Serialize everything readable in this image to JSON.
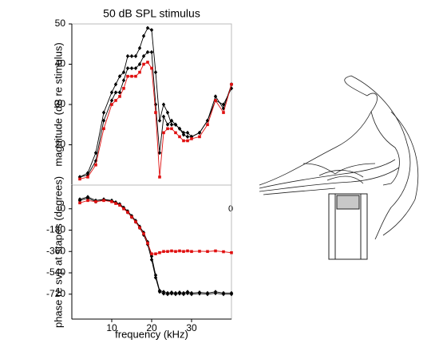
{
  "chart_data": [
    {
      "type": "line",
      "title": "50 dB SPL stimulus",
      "y_label": "magnitude (dB re stimulus)",
      "x": [
        2,
        4,
        6,
        8,
        10,
        11,
        12,
        13,
        14,
        15,
        16,
        17,
        18,
        19,
        20,
        21,
        22,
        23,
        24,
        25,
        26,
        27,
        28,
        29,
        30,
        32,
        34,
        36,
        38,
        40
      ],
      "xlim": [
        0,
        40
      ],
      "ylim": [
        10,
        50
      ],
      "yticks": [
        20,
        30,
        40,
        50
      ],
      "series": [
        {
          "color": "#000000",
          "values": [
            12,
            13,
            18,
            28,
            33,
            35,
            37,
            38,
            42,
            42,
            42,
            44,
            47,
            49,
            48.5,
            38,
            26,
            30,
            28,
            25,
            25,
            24,
            23,
            23,
            22,
            23,
            26,
            31,
            30,
            34
          ]
        },
        {
          "color": "#000000",
          "values": [
            12,
            12.5,
            16,
            26,
            31,
            33,
            33,
            36,
            39,
            39,
            39,
            40,
            42,
            43,
            43,
            30,
            18,
            27,
            25,
            26,
            25,
            24,
            22.5,
            22,
            22,
            23,
            26,
            32,
            29,
            35
          ]
        },
        {
          "color": "#e01010",
          "values": [
            11.5,
            12,
            15,
            24,
            30,
            31,
            32,
            34,
            37,
            37,
            37,
            38,
            40,
            40.5,
            39,
            28,
            12,
            23,
            24,
            24,
            23,
            22,
            21,
            21,
            21.5,
            22,
            25,
            31,
            28,
            35
          ]
        }
      ]
    },
    {
      "type": "line",
      "y_label": "phase re svp at stapes (degrees)",
      "x_label": "frequency (kHz)",
      "annotation": "0",
      "x": [
        2,
        4,
        6,
        8,
        10,
        11,
        12,
        13,
        14,
        15,
        16,
        17,
        18,
        19,
        20,
        21,
        22,
        23,
        24,
        25,
        26,
        27,
        28,
        29,
        30,
        32,
        34,
        36,
        38,
        40
      ],
      "xlim": [
        0,
        40
      ],
      "ylim": [
        -930,
        200
      ],
      "xticks": [
        10,
        20,
        30
      ],
      "yticks": [
        0,
        -180,
        -360,
        -540,
        -720
      ],
      "series": [
        {
          "color": "#000000",
          "values": [
            80,
            100,
            70,
            80,
            70,
            55,
            40,
            10,
            -20,
            -60,
            -100,
            -150,
            -200,
            -280,
            -400,
            -560,
            -690,
            -700,
            -710,
            -705,
            -710,
            -705,
            -710,
            -700,
            -710,
            -705,
            -710,
            -700,
            -710,
            -710
          ]
        },
        {
          "color": "#000000",
          "values": [
            70,
            90,
            60,
            75,
            65,
            50,
            35,
            5,
            -30,
            -70,
            -110,
            -160,
            -220,
            -300,
            -430,
            -580,
            -700,
            -715,
            -720,
            -715,
            -720,
            -715,
            -720,
            -712,
            -720,
            -715,
            -720,
            -712,
            -720,
            -720
          ]
        },
        {
          "color": "#e01010",
          "values": [
            50,
            70,
            60,
            70,
            60,
            45,
            30,
            0,
            -30,
            -70,
            -110,
            -160,
            -210,
            -290,
            -380,
            -380,
            -370,
            -360,
            -360,
            -355,
            -360,
            -355,
            -360,
            -355,
            -360,
            -358,
            -360,
            -355,
            -362,
            -370
          ]
        }
      ]
    }
  ]
}
